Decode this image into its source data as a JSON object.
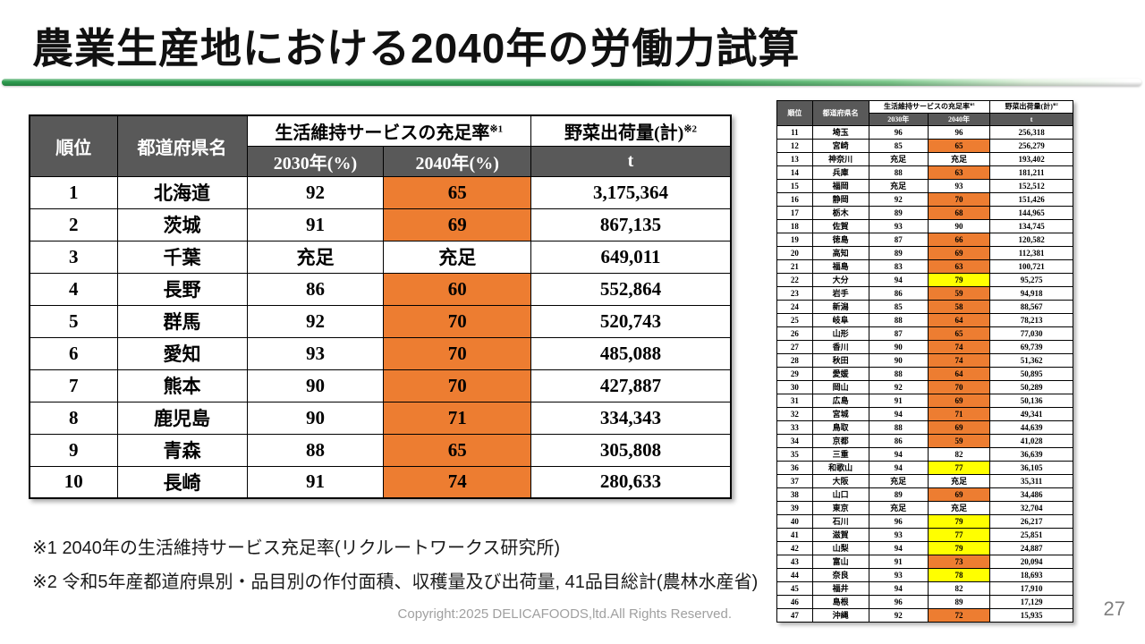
{
  "slide": {
    "title": "農業生産地における2040年の労働力試算",
    "note1": "※1 2040年の生活維持サービス充足率(リクルートワークス研究所)",
    "note2": "※2 令和5年産都道府県別・品目別の作付面積、収穫量及び出荷量, 41品目総計(農林水産省)",
    "copyright": "Copyright:2025 DELICAFOODS,ltd.All Rights Reserved.",
    "page_number": "27"
  },
  "colors": {
    "orange": "#ED7D31",
    "yellow": "#FFFF00",
    "header_gray": "#595959",
    "accent_green": "#2E9E50"
  },
  "main_table": {
    "headers": {
      "rank": "順位",
      "prefecture": "都道府県名",
      "service_rate": "生活維持サービスの充足率",
      "service_rate_note": "※1",
      "y2030": "2030年(%)",
      "y2040": "2040年(%)",
      "shipment": "野菜出荷量(計)",
      "shipment_note": "※2",
      "unit": "t"
    },
    "rows": [
      {
        "rank": "1",
        "pref": "北海道",
        "y2030": "92",
        "y2040": "65",
        "hl": "orange",
        "ship": "3,175,364"
      },
      {
        "rank": "2",
        "pref": "茨城",
        "y2030": "91",
        "y2040": "69",
        "hl": "orange",
        "ship": "867,135"
      },
      {
        "rank": "3",
        "pref": "千葉",
        "y2030": "充足",
        "y2040": "充足",
        "hl": "none",
        "ship": "649,011"
      },
      {
        "rank": "4",
        "pref": "長野",
        "y2030": "86",
        "y2040": "60",
        "hl": "orange",
        "ship": "552,864"
      },
      {
        "rank": "5",
        "pref": "群馬",
        "y2030": "92",
        "y2040": "70",
        "hl": "orange",
        "ship": "520,743"
      },
      {
        "rank": "6",
        "pref": "愛知",
        "y2030": "93",
        "y2040": "70",
        "hl": "orange",
        "ship": "485,088"
      },
      {
        "rank": "7",
        "pref": "熊本",
        "y2030": "90",
        "y2040": "70",
        "hl": "orange",
        "ship": "427,887"
      },
      {
        "rank": "8",
        "pref": "鹿児島",
        "y2030": "90",
        "y2040": "71",
        "hl": "orange",
        "ship": "334,343"
      },
      {
        "rank": "9",
        "pref": "青森",
        "y2030": "88",
        "y2040": "65",
        "hl": "orange",
        "ship": "305,808"
      },
      {
        "rank": "10",
        "pref": "長崎",
        "y2030": "91",
        "y2040": "74",
        "hl": "orange",
        "ship": "280,633"
      }
    ]
  },
  "sub_table": {
    "headers": {
      "rank": "順位",
      "prefecture": "都道府県名",
      "service_rate": "生活維持サービスの充足率",
      "service_rate_note": "※1",
      "y2030": "2030年",
      "y2040": "2040年",
      "shipment": "野菜出荷量(計)",
      "shipment_note": "※2",
      "unit": "t"
    },
    "rows": [
      {
        "rank": "11",
        "pref": "埼玉",
        "y2030": "96",
        "y2040": "96",
        "hl": "none",
        "ship": "256,318"
      },
      {
        "rank": "12",
        "pref": "宮崎",
        "y2030": "85",
        "y2040": "65",
        "hl": "orange",
        "ship": "256,279"
      },
      {
        "rank": "13",
        "pref": "神奈川",
        "y2030": "充足",
        "y2040": "充足",
        "hl": "none",
        "ship": "193,402"
      },
      {
        "rank": "14",
        "pref": "兵庫",
        "y2030": "88",
        "y2040": "63",
        "hl": "orange",
        "ship": "181,211"
      },
      {
        "rank": "15",
        "pref": "福岡",
        "y2030": "充足",
        "y2040": "93",
        "hl": "none",
        "ship": "152,512"
      },
      {
        "rank": "16",
        "pref": "静岡",
        "y2030": "92",
        "y2040": "70",
        "hl": "orange",
        "ship": "151,426"
      },
      {
        "rank": "17",
        "pref": "栃木",
        "y2030": "89",
        "y2040": "68",
        "hl": "orange",
        "ship": "144,965"
      },
      {
        "rank": "18",
        "pref": "佐賀",
        "y2030": "93",
        "y2040": "90",
        "hl": "none",
        "ship": "134,745"
      },
      {
        "rank": "19",
        "pref": "徳島",
        "y2030": "87",
        "y2040": "66",
        "hl": "orange",
        "ship": "120,582"
      },
      {
        "rank": "20",
        "pref": "高知",
        "y2030": "89",
        "y2040": "69",
        "hl": "orange",
        "ship": "112,381"
      },
      {
        "rank": "21",
        "pref": "福島",
        "y2030": "83",
        "y2040": "63",
        "hl": "orange",
        "ship": "100,721"
      },
      {
        "rank": "22",
        "pref": "大分",
        "y2030": "94",
        "y2040": "79",
        "hl": "yellow",
        "ship": "95,275"
      },
      {
        "rank": "23",
        "pref": "岩手",
        "y2030": "86",
        "y2040": "59",
        "hl": "orange",
        "ship": "94,918"
      },
      {
        "rank": "24",
        "pref": "新潟",
        "y2030": "85",
        "y2040": "58",
        "hl": "orange",
        "ship": "88,567"
      },
      {
        "rank": "25",
        "pref": "岐阜",
        "y2030": "88",
        "y2040": "64",
        "hl": "orange",
        "ship": "78,213"
      },
      {
        "rank": "26",
        "pref": "山形",
        "y2030": "87",
        "y2040": "65",
        "hl": "orange",
        "ship": "77,030"
      },
      {
        "rank": "27",
        "pref": "香川",
        "y2030": "90",
        "y2040": "74",
        "hl": "orange",
        "ship": "69,739"
      },
      {
        "rank": "28",
        "pref": "秋田",
        "y2030": "90",
        "y2040": "74",
        "hl": "orange",
        "ship": "51,362"
      },
      {
        "rank": "29",
        "pref": "愛媛",
        "y2030": "88",
        "y2040": "64",
        "hl": "orange",
        "ship": "50,895"
      },
      {
        "rank": "30",
        "pref": "岡山",
        "y2030": "92",
        "y2040": "70",
        "hl": "orange",
        "ship": "50,289"
      },
      {
        "rank": "31",
        "pref": "広島",
        "y2030": "91",
        "y2040": "69",
        "hl": "orange",
        "ship": "50,136"
      },
      {
        "rank": "32",
        "pref": "宮城",
        "y2030": "94",
        "y2040": "71",
        "hl": "orange",
        "ship": "49,341"
      },
      {
        "rank": "33",
        "pref": "鳥取",
        "y2030": "88",
        "y2040": "69",
        "hl": "orange",
        "ship": "44,639"
      },
      {
        "rank": "34",
        "pref": "京都",
        "y2030": "86",
        "y2040": "59",
        "hl": "orange",
        "ship": "41,028"
      },
      {
        "rank": "35",
        "pref": "三重",
        "y2030": "94",
        "y2040": "82",
        "hl": "none",
        "ship": "36,639"
      },
      {
        "rank": "36",
        "pref": "和歌山",
        "y2030": "94",
        "y2040": "77",
        "hl": "yellow",
        "ship": "36,105"
      },
      {
        "rank": "37",
        "pref": "大阪",
        "y2030": "充足",
        "y2040": "充足",
        "hl": "none",
        "ship": "35,311"
      },
      {
        "rank": "38",
        "pref": "山口",
        "y2030": "89",
        "y2040": "69",
        "hl": "orange",
        "ship": "34,486"
      },
      {
        "rank": "39",
        "pref": "東京",
        "y2030": "充足",
        "y2040": "充足",
        "hl": "none",
        "ship": "32,704"
      },
      {
        "rank": "40",
        "pref": "石川",
        "y2030": "96",
        "y2040": "79",
        "hl": "yellow",
        "ship": "26,217"
      },
      {
        "rank": "41",
        "pref": "滋賀",
        "y2030": "93",
        "y2040": "77",
        "hl": "yellow",
        "ship": "25,851"
      },
      {
        "rank": "42",
        "pref": "山梨",
        "y2030": "94",
        "y2040": "79",
        "hl": "yellow",
        "ship": "24,887"
      },
      {
        "rank": "43",
        "pref": "富山",
        "y2030": "91",
        "y2040": "73",
        "hl": "orange",
        "ship": "20,094"
      },
      {
        "rank": "44",
        "pref": "奈良",
        "y2030": "93",
        "y2040": "78",
        "hl": "yellow",
        "ship": "18,693"
      },
      {
        "rank": "45",
        "pref": "福井",
        "y2030": "94",
        "y2040": "82",
        "hl": "none",
        "ship": "17,910"
      },
      {
        "rank": "46",
        "pref": "島根",
        "y2030": "96",
        "y2040": "89",
        "hl": "none",
        "ship": "17,129"
      },
      {
        "rank": "47",
        "pref": "沖縄",
        "y2030": "92",
        "y2040": "72",
        "hl": "orange",
        "ship": "15,935"
      }
    ]
  }
}
